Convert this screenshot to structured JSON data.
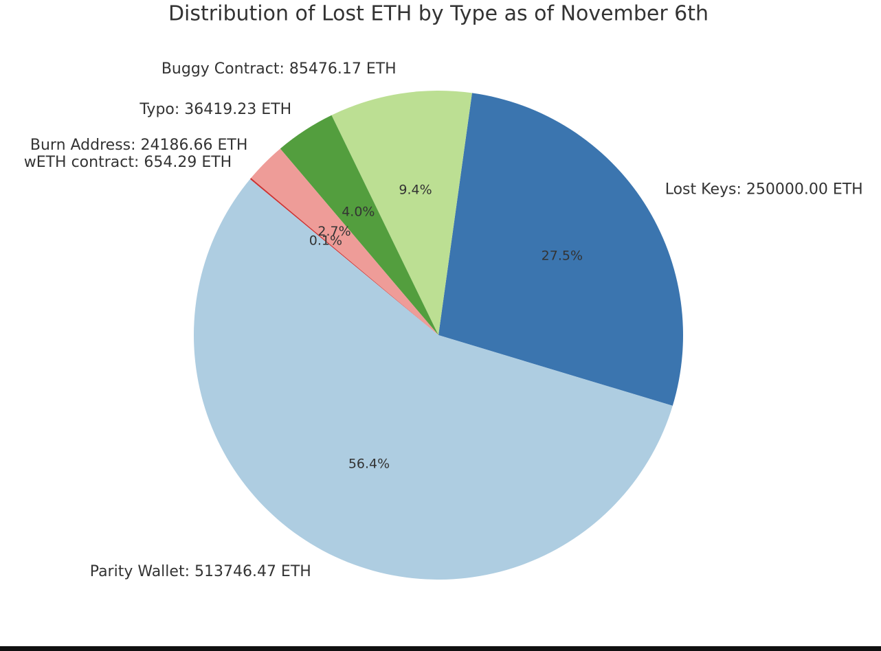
{
  "chart_data": {
    "type": "pie",
    "title": "Distribution of Lost ETH by Type as of November 6th",
    "categories": [
      "Lost Keys: 250000.00 ETH",
      "Buggy Contract: 85476.17 ETH",
      "Typo: 36419.23 ETH",
      "Burn Address: 24186.66 ETH",
      "wETH contract: 654.29 ETH",
      "Parity Wallet: 513746.47 ETH"
    ],
    "values": [
      27.5,
      9.4,
      4.0,
      2.7,
      0.1,
      56.4
    ],
    "value_labels": [
      "27.5%",
      "9.4%",
      "4.0%",
      "2.7%",
      "0.1%",
      "56.4%"
    ],
    "colors": [
      "#3b75af",
      "#bcdf93",
      "#539e3e",
      "#ee9c98",
      "#cc3333",
      "#aecde1"
    ]
  }
}
